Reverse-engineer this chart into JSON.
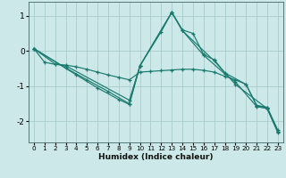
{
  "xlabel": "Humidex (Indice chaleur)",
  "background_color": "#cce8e8",
  "grid_color": "#aacccc",
  "line_color": "#1a7a6e",
  "xlim": [
    -0.5,
    23.5
  ],
  "ylim": [
    -2.6,
    1.4
  ],
  "yticks": [
    -2,
    -1,
    0,
    1
  ],
  "xticks": [
    0,
    1,
    2,
    3,
    4,
    5,
    6,
    7,
    8,
    9,
    10,
    11,
    12,
    13,
    14,
    15,
    16,
    17,
    18,
    19,
    20,
    21,
    22,
    23
  ],
  "series": [
    {
      "x": [
        0,
        1,
        2,
        3,
        4,
        5,
        6,
        7,
        8,
        9,
        10,
        11,
        12,
        13,
        14,
        15,
        16,
        17,
        18,
        19,
        20,
        21,
        22,
        23
      ],
      "y": [
        0.07,
        -0.32,
        -0.38,
        -0.4,
        -0.45,
        -0.52,
        -0.6,
        -0.68,
        -0.75,
        -0.82,
        -0.6,
        -0.58,
        -0.56,
        -0.54,
        -0.52,
        -0.52,
        -0.55,
        -0.6,
        -0.72,
        -0.82,
        -0.95,
        -1.55,
        -1.6,
        -2.25
      ]
    },
    {
      "x": [
        0,
        2,
        3,
        9,
        10,
        12,
        13,
        14,
        15,
        16,
        17,
        18,
        20,
        21,
        22,
        23
      ],
      "y": [
        0.07,
        -0.37,
        -0.42,
        -1.4,
        -0.42,
        0.55,
        1.1,
        0.6,
        0.5,
        -0.1,
        -0.25,
        -0.62,
        -0.95,
        -1.55,
        -1.62,
        -2.3
      ]
    },
    {
      "x": [
        0,
        3,
        5,
        7,
        9,
        10,
        13,
        14,
        16,
        18,
        19,
        21,
        22,
        23
      ],
      "y": [
        0.07,
        -0.48,
        -0.82,
        -1.15,
        -1.5,
        -0.42,
        1.1,
        0.58,
        -0.12,
        -0.65,
        -0.88,
        -1.58,
        -1.64,
        -2.3
      ]
    },
    {
      "x": [
        0,
        4,
        6,
        8,
        9,
        10,
        13,
        14,
        17,
        19,
        22,
        23
      ],
      "y": [
        0.07,
        -0.68,
        -1.05,
        -1.38,
        -1.52,
        -0.42,
        1.1,
        0.58,
        -0.28,
        -0.95,
        -1.64,
        -2.32
      ]
    }
  ]
}
